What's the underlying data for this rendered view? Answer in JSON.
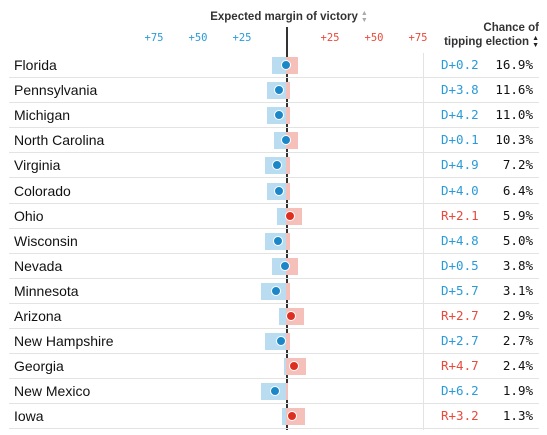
{
  "chart_data": {
    "type": "table",
    "header": {
      "margin_title": "Expected margin of victory",
      "chance_title_line1": "Chance of",
      "chance_title_line2": "tipping election"
    },
    "ticks": [
      {
        "label": "+75",
        "value": -75,
        "side": "dem"
      },
      {
        "label": "+50",
        "value": -50,
        "side": "dem"
      },
      {
        "label": "+25",
        "value": -25,
        "side": "dem"
      },
      {
        "label": "+25",
        "value": 25,
        "side": "rep"
      },
      {
        "label": "+50",
        "value": 50,
        "side": "rep"
      },
      {
        "label": "+75",
        "value": 75,
        "side": "rep"
      }
    ],
    "xlim": [
      -75,
      75
    ],
    "rows": [
      {
        "state": "Florida",
        "margin_label": "D+0.2",
        "margin": -0.2,
        "range": [
          -8,
          7
        ],
        "chance": "16.9%"
      },
      {
        "state": "Pennsylvania",
        "margin_label": "D+3.8",
        "margin": -3.8,
        "range": [
          -11,
          2.5
        ],
        "chance": "11.6%"
      },
      {
        "state": "Michigan",
        "margin_label": "D+4.2",
        "margin": -4.2,
        "range": [
          -11,
          2
        ],
        "chance": "11.0%"
      },
      {
        "state": "North Carolina",
        "margin_label": "D+0.1",
        "margin": -0.1,
        "range": [
          -7,
          7
        ],
        "chance": "10.3%"
      },
      {
        "state": "Virginia",
        "margin_label": "D+4.9",
        "margin": -4.9,
        "range": [
          -12,
          2
        ],
        "chance": "7.2%"
      },
      {
        "state": "Colorado",
        "margin_label": "D+4.0",
        "margin": -4.0,
        "range": [
          -11,
          2
        ],
        "chance": "6.4%"
      },
      {
        "state": "Ohio",
        "margin_label": "R+2.1",
        "margin": 2.1,
        "range": [
          -5,
          9
        ],
        "chance": "5.9%"
      },
      {
        "state": "Wisconsin",
        "margin_label": "D+4.8",
        "margin": -4.8,
        "range": [
          -12,
          2
        ],
        "chance": "5.0%"
      },
      {
        "state": "Nevada",
        "margin_label": "D+0.5",
        "margin": -0.5,
        "range": [
          -8,
          7
        ],
        "chance": "3.8%"
      },
      {
        "state": "Minnesota",
        "margin_label": "D+5.7",
        "margin": -5.7,
        "range": [
          -14,
          2
        ],
        "chance": "3.1%"
      },
      {
        "state": "Arizona",
        "margin_label": "R+2.7",
        "margin": 2.7,
        "range": [
          -4,
          10
        ],
        "chance": "2.9%"
      },
      {
        "state": "New Hampshire",
        "margin_label": "D+2.7",
        "margin": -2.7,
        "range": [
          -12,
          2.5
        ],
        "chance": "2.7%"
      },
      {
        "state": "Georgia",
        "margin_label": "R+4.7",
        "margin": 4.7,
        "range": [
          -1,
          11.5
        ],
        "chance": "2.4%"
      },
      {
        "state": "New Mexico",
        "margin_label": "D+6.2",
        "margin": -6.2,
        "range": [
          -14,
          1
        ],
        "chance": "1.9%"
      },
      {
        "state": "Iowa",
        "margin_label": "R+3.2",
        "margin": 3.2,
        "range": [
          -2,
          11
        ],
        "chance": "1.3%"
      }
    ],
    "colors": {
      "dem_text": "#2a9bd8",
      "rep_text": "#e84a3c",
      "dem_bar": "#b9dcf1",
      "rep_bar": "#f6c0ba",
      "dem_dot": "#1b87c9",
      "rep_dot": "#dd2e22"
    }
  }
}
